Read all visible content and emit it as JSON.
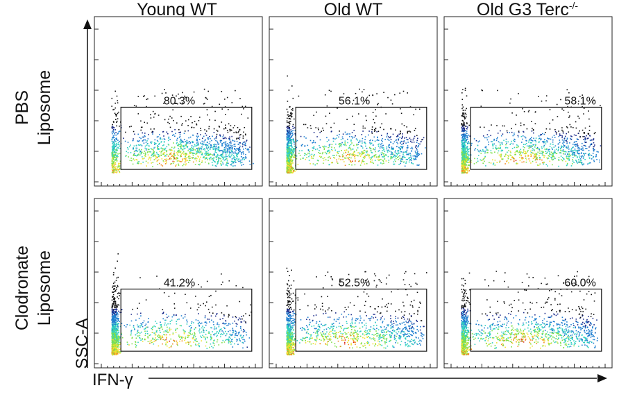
{
  "columns": [
    "Young WT",
    "Old WT",
    "Old G3 Terc"
  ],
  "column_superscript": "-/-",
  "rows": [
    {
      "line1": "PBS",
      "line2": "Liposome"
    },
    {
      "line1": "Clodronate",
      "line2": "Liposome"
    }
  ],
  "y_axis_label": "SSC-A",
  "x_axis_label": "IFN-γ",
  "chart_data": {
    "type": "scatter",
    "xlabel": "IFN-γ",
    "ylabel": "SSC-A",
    "xlim": [
      0,
      100
    ],
    "ylim": [
      0,
      100
    ],
    "gate": {
      "x": [
        14,
        96
      ],
      "y": [
        8,
        48
      ]
    },
    "panels": [
      {
        "row": 0,
        "col": 0,
        "row_label": "PBS Liposome",
        "col_label": "Young WT",
        "gate_percent": "80.3%",
        "gate_fraction": 0.803
      },
      {
        "row": 0,
        "col": 1,
        "row_label": "PBS Liposome",
        "col_label": "Old WT",
        "gate_percent": "56.1%",
        "gate_fraction": 0.561
      },
      {
        "row": 0,
        "col": 2,
        "row_label": "PBS Liposome",
        "col_label": "Old G3 Terc-/-",
        "gate_percent": "58.1%",
        "gate_fraction": 0.581
      },
      {
        "row": 1,
        "col": 0,
        "row_label": "Clodronate Liposome",
        "col_label": "Young WT",
        "gate_percent": "41.2%",
        "gate_fraction": 0.412
      },
      {
        "row": 1,
        "col": 1,
        "row_label": "Clodronate Liposome",
        "col_label": "Old WT",
        "gate_percent": "52.5%",
        "gate_fraction": 0.525
      },
      {
        "row": 1,
        "col": 2,
        "row_label": "Clodronate Liposome",
        "col_label": "Old G3 Terc-/-",
        "gate_percent": "60.0%",
        "gate_fraction": 0.6
      }
    ],
    "color_scale": [
      "#1a2a8a",
      "#1f7fd0",
      "#2fd0c0",
      "#7ee04a",
      "#f0e030",
      "#f08a20",
      "#d8281a"
    ]
  }
}
